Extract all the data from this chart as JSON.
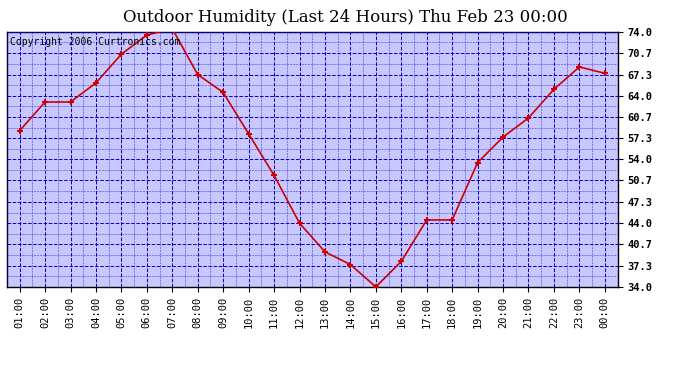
{
  "title": "Outdoor Humidity (Last 24 Hours) Thu Feb 23 00:00",
  "copyright": "Copyright 2006 Curtronics.com",
  "x_labels": [
    "01:00",
    "02:00",
    "03:00",
    "04:00",
    "05:00",
    "06:00",
    "07:00",
    "08:00",
    "09:00",
    "10:00",
    "11:00",
    "12:00",
    "13:00",
    "14:00",
    "15:00",
    "16:00",
    "17:00",
    "18:00",
    "19:00",
    "20:00",
    "21:00",
    "22:00",
    "23:00",
    "00:00"
  ],
  "y_values": [
    58.5,
    63.0,
    63.0,
    66.0,
    70.5,
    73.5,
    74.5,
    67.3,
    64.5,
    58.0,
    51.5,
    44.0,
    39.5,
    37.5,
    34.0,
    38.0,
    44.5,
    44.5,
    53.5,
    57.5,
    60.5,
    65.0,
    68.5,
    67.5
  ],
  "line_color": "#cc0000",
  "marker_color": "#cc0000",
  "plot_bg_color": "#c8c8ff",
  "grid_color": "#0000cc",
  "border_color": "#000000",
  "title_color": "#000000",
  "copyright_color": "#000000",
  "ylim_min": 34.0,
  "ylim_max": 74.0,
  "ytick_values": [
    34.0,
    37.3,
    40.7,
    44.0,
    47.3,
    50.7,
    54.0,
    57.3,
    60.7,
    64.0,
    67.3,
    70.7,
    74.0
  ],
  "fig_bg_color": "#ffffff",
  "title_fontsize": 12,
  "copyright_fontsize": 7,
  "tick_fontsize": 7.5
}
